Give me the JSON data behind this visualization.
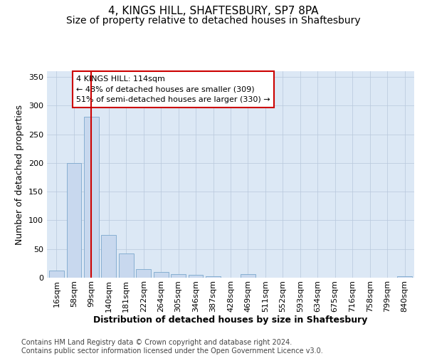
{
  "title": "4, KINGS HILL, SHAFTESBURY, SP7 8PA",
  "subtitle": "Size of property relative to detached houses in Shaftesbury",
  "xlabel": "Distribution of detached houses by size in Shaftesbury",
  "ylabel": "Number of detached properties",
  "categories": [
    "16sqm",
    "58sqm",
    "99sqm",
    "140sqm",
    "181sqm",
    "222sqm",
    "264sqm",
    "305sqm",
    "346sqm",
    "387sqm",
    "428sqm",
    "469sqm",
    "511sqm",
    "552sqm",
    "593sqm",
    "634sqm",
    "675sqm",
    "716sqm",
    "758sqm",
    "799sqm",
    "840sqm"
  ],
  "values": [
    13,
    200,
    280,
    75,
    42,
    15,
    10,
    6,
    5,
    2,
    0,
    6,
    0,
    0,
    0,
    0,
    0,
    0,
    0,
    0,
    2
  ],
  "bar_color": "#c8d8ee",
  "bar_edge_color": "#7ba7cc",
  "vline_x_index": 2.0,
  "vline_color": "#cc0000",
  "annotation_text": "4 KINGS HILL: 114sqm\n← 48% of detached houses are smaller (309)\n51% of semi-detached houses are larger (330) →",
  "annotation_box_color": "#ffffff",
  "annotation_box_edge": "#cc0000",
  "ylim": [
    0,
    360
  ],
  "yticks": [
    0,
    50,
    100,
    150,
    200,
    250,
    300,
    350
  ],
  "footer": "Contains HM Land Registry data © Crown copyright and database right 2024.\nContains public sector information licensed under the Open Government Licence v3.0.",
  "plot_bg_color": "#dce8f5",
  "title_fontsize": 11,
  "subtitle_fontsize": 10,
  "axis_label_fontsize": 9,
  "tick_fontsize": 8,
  "footer_fontsize": 7
}
